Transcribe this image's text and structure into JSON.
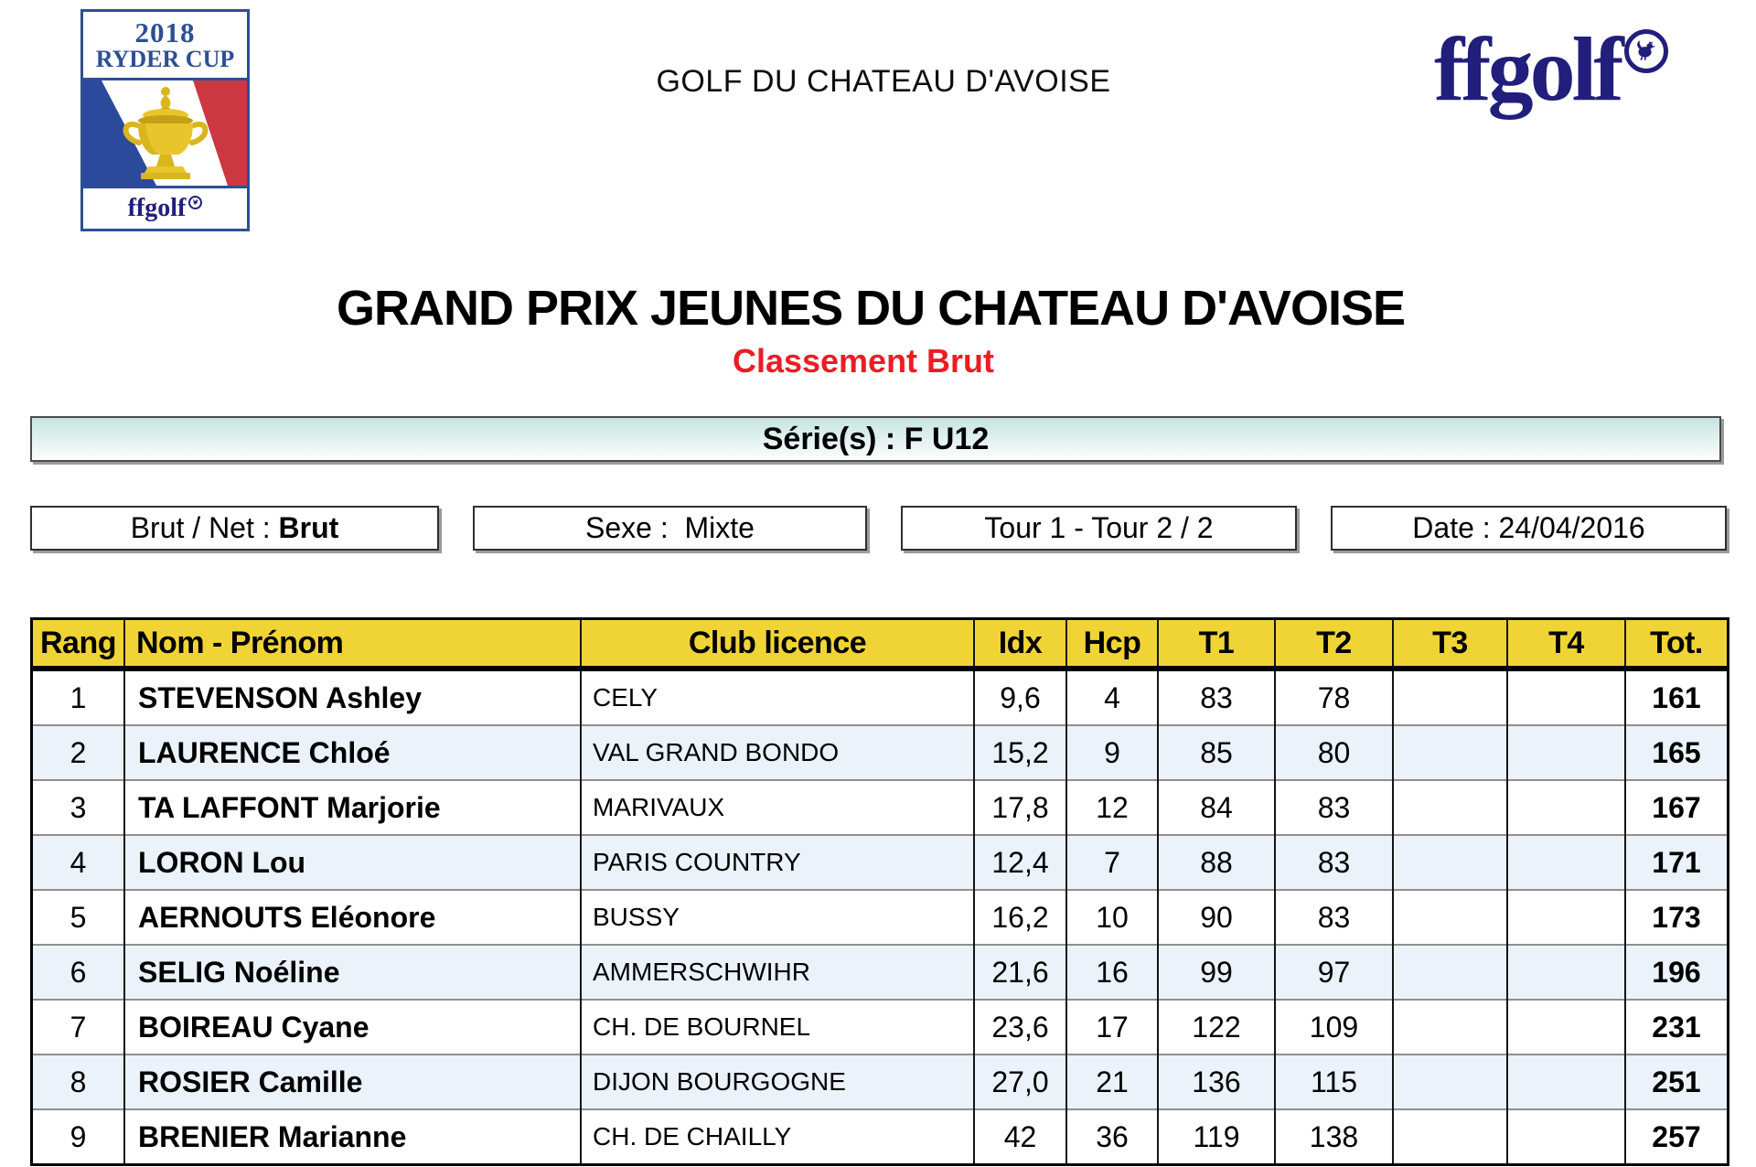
{
  "brand": {
    "ryder_logo": {
      "year": "2018",
      "event": "RYDER CUP",
      "footer": "ffgolf"
    },
    "club_header": "GOLF DU CHATEAU D'AVOISE",
    "ffgolf_wordmark": "ffgolf"
  },
  "title": {
    "main": "GRAND PRIX JEUNES DU CHATEAU D'AVOISE",
    "sub": "Classement Brut"
  },
  "series_band": {
    "text": "Série(s) : F U12"
  },
  "filters": [
    {
      "text": "Brut / Net : ",
      "bold": "Brut"
    },
    {
      "text": "Sexe :  Mixte",
      "bold": ""
    },
    {
      "text": "Tour 1 - Tour 2 / 2",
      "bold": ""
    },
    {
      "text": "Date : 24/04/2016",
      "bold": ""
    }
  ],
  "table": {
    "columns": [
      {
        "key": "rang",
        "label": "Rang"
      },
      {
        "key": "nom",
        "label": "Nom - Prénom"
      },
      {
        "key": "club",
        "label": "Club licence"
      },
      {
        "key": "idx",
        "label": "Idx"
      },
      {
        "key": "hcp",
        "label": "Hcp"
      },
      {
        "key": "t1",
        "label": "T1"
      },
      {
        "key": "t2",
        "label": "T2"
      },
      {
        "key": "t3",
        "label": "T3"
      },
      {
        "key": "t4",
        "label": "T4"
      },
      {
        "key": "tot",
        "label": "Tot."
      }
    ],
    "rows": [
      {
        "rang": "1",
        "nom": "STEVENSON Ashley",
        "club": "CELY",
        "idx": "9,6",
        "hcp": "4",
        "t1": "83",
        "t2": "78",
        "t3": "",
        "t4": "",
        "tot": "161"
      },
      {
        "rang": "2",
        "nom": "LAURENCE Chloé",
        "club": "VAL GRAND BONDO",
        "idx": "15,2",
        "hcp": "9",
        "t1": "85",
        "t2": "80",
        "t3": "",
        "t4": "",
        "tot": "165"
      },
      {
        "rang": "3",
        "nom": "TA LAFFONT Marjorie",
        "club": "MARIVAUX",
        "idx": "17,8",
        "hcp": "12",
        "t1": "84",
        "t2": "83",
        "t3": "",
        "t4": "",
        "tot": "167"
      },
      {
        "rang": "4",
        "nom": "LORON Lou",
        "club": "PARIS COUNTRY",
        "idx": "12,4",
        "hcp": "7",
        "t1": "88",
        "t2": "83",
        "t3": "",
        "t4": "",
        "tot": "171"
      },
      {
        "rang": "5",
        "nom": "AERNOUTS Eléonore",
        "club": "BUSSY",
        "idx": "16,2",
        "hcp": "10",
        "t1": "90",
        "t2": "83",
        "t3": "",
        "t4": "",
        "tot": "173"
      },
      {
        "rang": "6",
        "nom": "SELIG Noéline",
        "club": "AMMERSCHWIHR",
        "idx": "21,6",
        "hcp": "16",
        "t1": "99",
        "t2": "97",
        "t3": "",
        "t4": "",
        "tot": "196"
      },
      {
        "rang": "7",
        "nom": "BOIREAU Cyane",
        "club": "CH. DE BOURNEL",
        "idx": "23,6",
        "hcp": "17",
        "t1": "122",
        "t2": "109",
        "t3": "",
        "t4": "",
        "tot": "231"
      },
      {
        "rang": "8",
        "nom": "ROSIER Camille",
        "club": "DIJON BOURGOGNE",
        "idx": "27,0",
        "hcp": "21",
        "t1": "136",
        "t2": "115",
        "t3": "",
        "t4": "",
        "tot": "251"
      },
      {
        "rang": "9",
        "nom": "BRENIER Marianne",
        "club": "CH. DE CHAILLY",
        "idx": "42",
        "hcp": "36",
        "t1": "119",
        "t2": "138",
        "t3": "",
        "t4": "",
        "tot": "257"
      }
    ]
  },
  "colors": {
    "header_yellow": "#f0d435",
    "navy": "#221e7c",
    "ryder_blue": "#2d4f93",
    "flag_blue": "#2b4a9b",
    "flag_red": "#cd3742",
    "trophy_gold": "#e8c62b",
    "subtitle_red": "#ed1c24",
    "band_teal": "#c6e5e1",
    "alt_row_blue": "#ebf2fa"
  }
}
